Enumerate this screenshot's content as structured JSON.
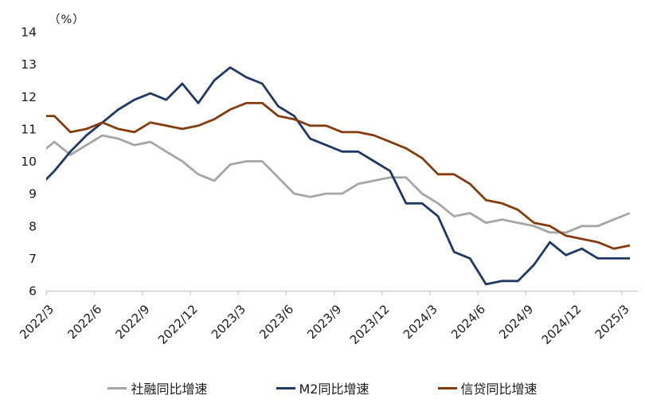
{
  "unit_label": "（%）",
  "chart_data": {
    "type": "line",
    "title": "",
    "xlabel": "",
    "ylabel": "（%）",
    "ylim": [
      6,
      14
    ],
    "yticks": [
      6,
      7,
      8,
      9,
      10,
      11,
      12,
      13,
      14
    ],
    "grid": false,
    "legend_position": "bottom",
    "tick_labels": [
      "2022/3",
      "2022/6",
      "2022/9",
      "2022/12",
      "2023/3",
      "2023/6",
      "2023/9",
      "2023/12",
      "2024/3",
      "2024/6",
      "2024/9",
      "2024/12",
      "2025/3"
    ],
    "x_monthly": [
      "2022/3",
      "2022/4",
      "2022/5",
      "2022/6",
      "2022/7",
      "2022/8",
      "2022/9",
      "2022/10",
      "2022/11",
      "2022/12",
      "2023/1",
      "2023/2",
      "2023/3",
      "2023/4",
      "2023/5",
      "2023/6",
      "2023/7",
      "2023/8",
      "2023/9",
      "2023/10",
      "2023/11",
      "2023/12",
      "2024/1",
      "2024/2",
      "2024/3",
      "2024/4",
      "2024/5",
      "2024/6",
      "2024/7",
      "2024/8",
      "2024/9",
      "2024/10",
      "2024/11",
      "2024/12",
      "2025/1",
      "2025/2",
      "2025/3"
    ],
    "series": [
      {
        "name": "社融同比增速",
        "color": "#a6a6a6",
        "lead_in_value_at_left_edge": 10.2,
        "values": [
          10.6,
          10.2,
          10.5,
          10.8,
          10.7,
          10.5,
          10.6,
          10.3,
          10.0,
          9.6,
          9.4,
          9.9,
          10.0,
          10.0,
          9.5,
          9.0,
          8.9,
          9.0,
          9.0,
          9.3,
          9.4,
          9.5,
          9.5,
          9.0,
          8.7,
          8.3,
          8.4,
          8.1,
          8.2,
          8.1,
          8.0,
          7.8,
          7.8,
          8.0,
          8.0,
          8.2,
          8.4
        ]
      },
      {
        "name": "M2同比增速",
        "color": "#1f3864",
        "lead_in_value_at_left_edge": 9.2,
        "values": [
          9.7,
          10.3,
          10.8,
          11.2,
          11.6,
          11.9,
          12.1,
          11.9,
          12.4,
          11.8,
          12.5,
          12.9,
          12.6,
          12.4,
          11.7,
          11.4,
          10.7,
          10.5,
          10.3,
          10.3,
          10.0,
          9.7,
          8.7,
          8.7,
          8.3,
          7.2,
          7.0,
          6.2,
          6.3,
          6.3,
          6.8,
          7.5,
          7.1,
          7.3,
          7.0,
          7.0,
          7.0
        ]
      },
      {
        "name": "信贷同比增速",
        "color": "#843c0c",
        "lead_in_value_at_left_edge": 11.4,
        "values": [
          11.4,
          10.9,
          11.0,
          11.2,
          11.0,
          10.9,
          11.2,
          11.1,
          11.0,
          11.1,
          11.3,
          11.6,
          11.8,
          11.8,
          11.4,
          11.3,
          11.1,
          11.1,
          10.9,
          10.9,
          10.8,
          10.6,
          10.4,
          10.1,
          9.6,
          9.6,
          9.3,
          8.8,
          8.7,
          8.5,
          8.1,
          8.0,
          7.7,
          7.6,
          7.5,
          7.3,
          7.4
        ]
      }
    ]
  }
}
